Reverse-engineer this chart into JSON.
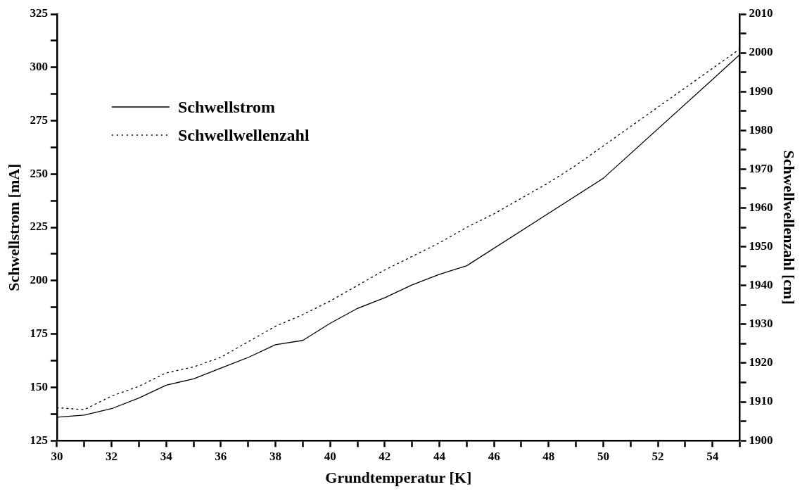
{
  "chart_data": {
    "type": "line",
    "xlabel": "Grundtemperatur [K]",
    "ylabel": "Schwellstrom [mA]",
    "y2label": "Schwellwellenzahl [cm]",
    "series": [
      {
        "name": "Schwellstrom",
        "color": "#000000",
        "line_style": "solid",
        "x": [
          30,
          31,
          32,
          33,
          34,
          35,
          36,
          37,
          38,
          39,
          40,
          41,
          42,
          43,
          44,
          45,
          50,
          55
        ],
        "values": [
          136,
          137,
          140,
          145,
          151,
          154,
          159,
          164,
          170,
          172,
          180,
          187,
          192,
          198,
          203,
          207,
          248,
          306
        ]
      },
      {
        "name": "Schwellwellenzahl",
        "color": "#000000",
        "line_style": "dotted",
        "axis": "y2",
        "x": [
          30,
          31,
          32,
          33,
          34,
          35,
          36,
          37,
          38,
          39,
          40,
          41,
          42,
          43,
          44,
          45,
          46,
          47,
          48,
          49,
          50,
          51,
          52,
          53,
          54,
          55
        ],
        "values": [
          1908.5,
          1908,
          1911.5,
          1914,
          1917.5,
          1919,
          1921.5,
          1925.5,
          1929.5,
          1932.5,
          1936,
          1940,
          1944,
          1947.5,
          1951,
          1955,
          1958.5,
          1962.5,
          1966.5,
          1971,
          1976,
          1981,
          1986,
          1991,
          1996,
          2001
        ]
      }
    ],
    "xlim": [
      30,
      55
    ],
    "xticks": [
      30,
      {
        "value": 31,
        "label": null
      },
      32,
      {
        "value": 33,
        "label": null
      },
      34,
      {
        "value": 35,
        "label": null
      },
      36,
      {
        "value": 37,
        "label": null
      },
      38,
      {
        "value": 39,
        "label": null
      },
      40,
      {
        "value": 41,
        "label": null
      },
      42,
      {
        "value": 43,
        "label": null
      },
      44,
      {
        "value": 45,
        "label": null
      },
      46,
      {
        "value": 47,
        "label": null
      },
      48,
      {
        "value": 49,
        "label": null
      },
      50,
      {
        "value": 51,
        "label": null
      },
      52,
      {
        "value": 53,
        "label": null
      },
      54,
      {
        "value": 55,
        "label": null
      }
    ],
    "ylim": [
      125,
      325
    ],
    "yticks": [
      125,
      {
        "value": 137.5,
        "label": null
      },
      150,
      {
        "value": 162.5,
        "label": null
      },
      175,
      {
        "value": 187.5,
        "label": null
      },
      200,
      {
        "value": 212.5,
        "label": null
      },
      225,
      {
        "value": 237.5,
        "label": null
      },
      250,
      {
        "value": 262.5,
        "label": null
      },
      275,
      {
        "value": 287.5,
        "label": null
      },
      300,
      {
        "value": 312.5,
        "label": null
      },
      325
    ],
    "y2lim": [
      1900,
      2010
    ],
    "y2ticks": [
      1900,
      {
        "value": 1905,
        "label": null
      },
      1910,
      {
        "value": 1915,
        "label": null
      },
      1920,
      {
        "value": 1925,
        "label": null
      },
      1930,
      {
        "value": 1935,
        "label": null
      },
      1940,
      {
        "value": 1945,
        "label": null
      },
      1950,
      {
        "value": 1955,
        "label": null
      },
      1960,
      {
        "value": 1965,
        "label": null
      },
      1970,
      {
        "value": 1975,
        "label": null
      },
      1980,
      {
        "value": 1985,
        "label": null
      },
      1990,
      {
        "value": 1995,
        "label": null
      },
      2000,
      {
        "value": 2005,
        "label": null
      },
      2010
    ],
    "grid": false,
    "legend": "top left",
    "marker": "none"
  }
}
